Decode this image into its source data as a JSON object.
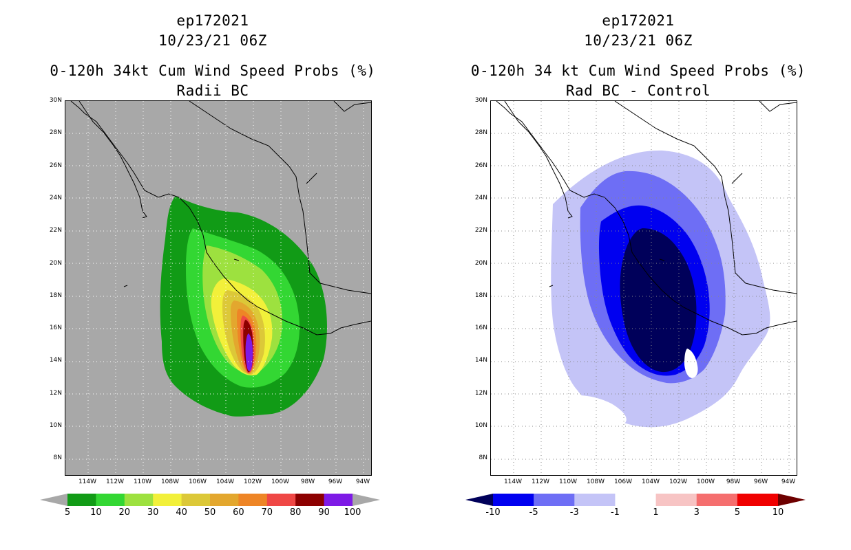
{
  "panels": [
    {
      "storm_id": "ep172021",
      "datetime": "10/23/21 06Z",
      "title": "0-120h 34kt Cum Wind Speed Probs (%)",
      "subtitle": "Radii BC",
      "background": "#a8a8a8",
      "colorbar": {
        "labels": [
          "5",
          "10",
          "20",
          "30",
          "40",
          "50",
          "60",
          "70",
          "80",
          "90",
          "100"
        ],
        "colors": [
          "#119b16",
          "#33d733",
          "#9de13f",
          "#f2f03a",
          "#dcc838",
          "#e3a72e",
          "#ee8526",
          "#ef4745",
          "#8d0000",
          "#7e1ae6"
        ],
        "under_color": "#a8a8a8",
        "over_color": "#a8a8a8"
      }
    },
    {
      "storm_id": "ep172021",
      "datetime": "10/23/21 06Z",
      "title": "0-120h 34 kt Cum Wind Speed Probs (%)",
      "subtitle": "Rad BC - Control",
      "background": "#ffffff",
      "colorbar": {
        "labels": [
          "-10",
          "-5",
          "-3",
          "-1",
          "1",
          "3",
          "5",
          "10"
        ],
        "colors": [
          "#0000f0",
          "#6e6ef5",
          "#c4c4f7",
          "#ffffff",
          "#f7c4c4",
          "#f56e6e",
          "#f00000"
        ],
        "under_color": "#00005a",
        "over_color": "#6e0000"
      }
    }
  ],
  "axes": {
    "lat_labels": [
      "30N",
      "28N",
      "26N",
      "24N",
      "22N",
      "20N",
      "18N",
      "16N",
      "14N",
      "12N",
      "10N",
      "8N"
    ],
    "lon_labels": [
      "114W",
      "112W",
      "110W",
      "108W",
      "106W",
      "104W",
      "102W",
      "100W",
      "98W",
      "96W",
      "94W"
    ]
  }
}
